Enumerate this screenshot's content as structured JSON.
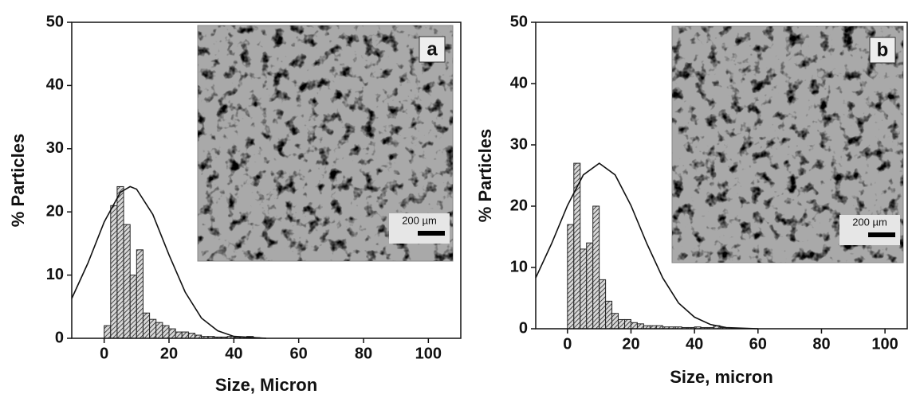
{
  "chart_data": [
    {
      "type": "histogram",
      "xlabel": "Size, Micron",
      "ylabel": "% Particles",
      "panel_label": "a",
      "scale_bar_label": "200 µm",
      "xlim": [
        -10,
        110
      ],
      "ylim": [
        0,
        50
      ],
      "xticks": [
        0,
        20,
        40,
        60,
        80,
        100
      ],
      "yticks": [
        0,
        10,
        20,
        30,
        40,
        50
      ],
      "bar_color": "#222222",
      "line_color": "#111111",
      "bins": [
        0,
        2,
        4,
        6,
        8,
        10,
        12,
        14,
        16,
        18,
        20,
        22,
        24,
        26,
        28,
        30,
        32,
        34,
        36,
        38,
        40,
        42,
        44,
        46,
        48
      ],
      "values": [
        2,
        21,
        24,
        18,
        10,
        14,
        4,
        3,
        2.5,
        2,
        1.5,
        1,
        1,
        0.8,
        0.5,
        0.3,
        0.3,
        0.2,
        0.2,
        0.3,
        0.2,
        0.2,
        0.3,
        0.1
      ],
      "fit": {
        "x": [
          -10,
          -5,
          0,
          5,
          8,
          10,
          15,
          20,
          25,
          30,
          35,
          40,
          50
        ],
        "values": [
          6.3,
          11.9,
          18.4,
          23.1,
          24,
          23.6,
          19.6,
          13.2,
          7.3,
          3.2,
          1.2,
          0.3,
          0
        ]
      }
    },
    {
      "type": "histogram",
      "xlabel": "Size, micron",
      "ylabel": "% Particles",
      "panel_label": "b",
      "scale_bar_label": "200 µm",
      "xlim": [
        -10,
        107
      ],
      "ylim": [
        0,
        50
      ],
      "xticks": [
        0,
        20,
        40,
        60,
        80,
        100
      ],
      "yticks": [
        0,
        10,
        20,
        30,
        40,
        50
      ],
      "bar_color": "#222222",
      "line_color": "#111111",
      "bins": [
        0,
        2,
        4,
        6,
        8,
        10,
        12,
        14,
        16,
        18,
        20,
        22,
        24,
        26,
        28,
        30,
        32,
        34,
        36,
        38,
        40,
        42,
        44,
        46,
        48,
        50
      ],
      "values": [
        17,
        27,
        13,
        14,
        20,
        8,
        4.5,
        2.5,
        1.5,
        1.5,
        1,
        0.8,
        0.5,
        0.5,
        0.5,
        0.3,
        0.3,
        0.3,
        0.2,
        0.2,
        0.3,
        0.2,
        0.2,
        0.5,
        0.2
      ],
      "fit": {
        "x": [
          -10,
          -5,
          0,
          5,
          10,
          15,
          20,
          25,
          30,
          35,
          40,
          45,
          50,
          60
        ],
        "values": [
          8.3,
          13.9,
          20.1,
          25.1,
          27,
          25.1,
          20.1,
          13.9,
          8.3,
          4.2,
          1.9,
          0.7,
          0.2,
          0
        ]
      }
    }
  ]
}
